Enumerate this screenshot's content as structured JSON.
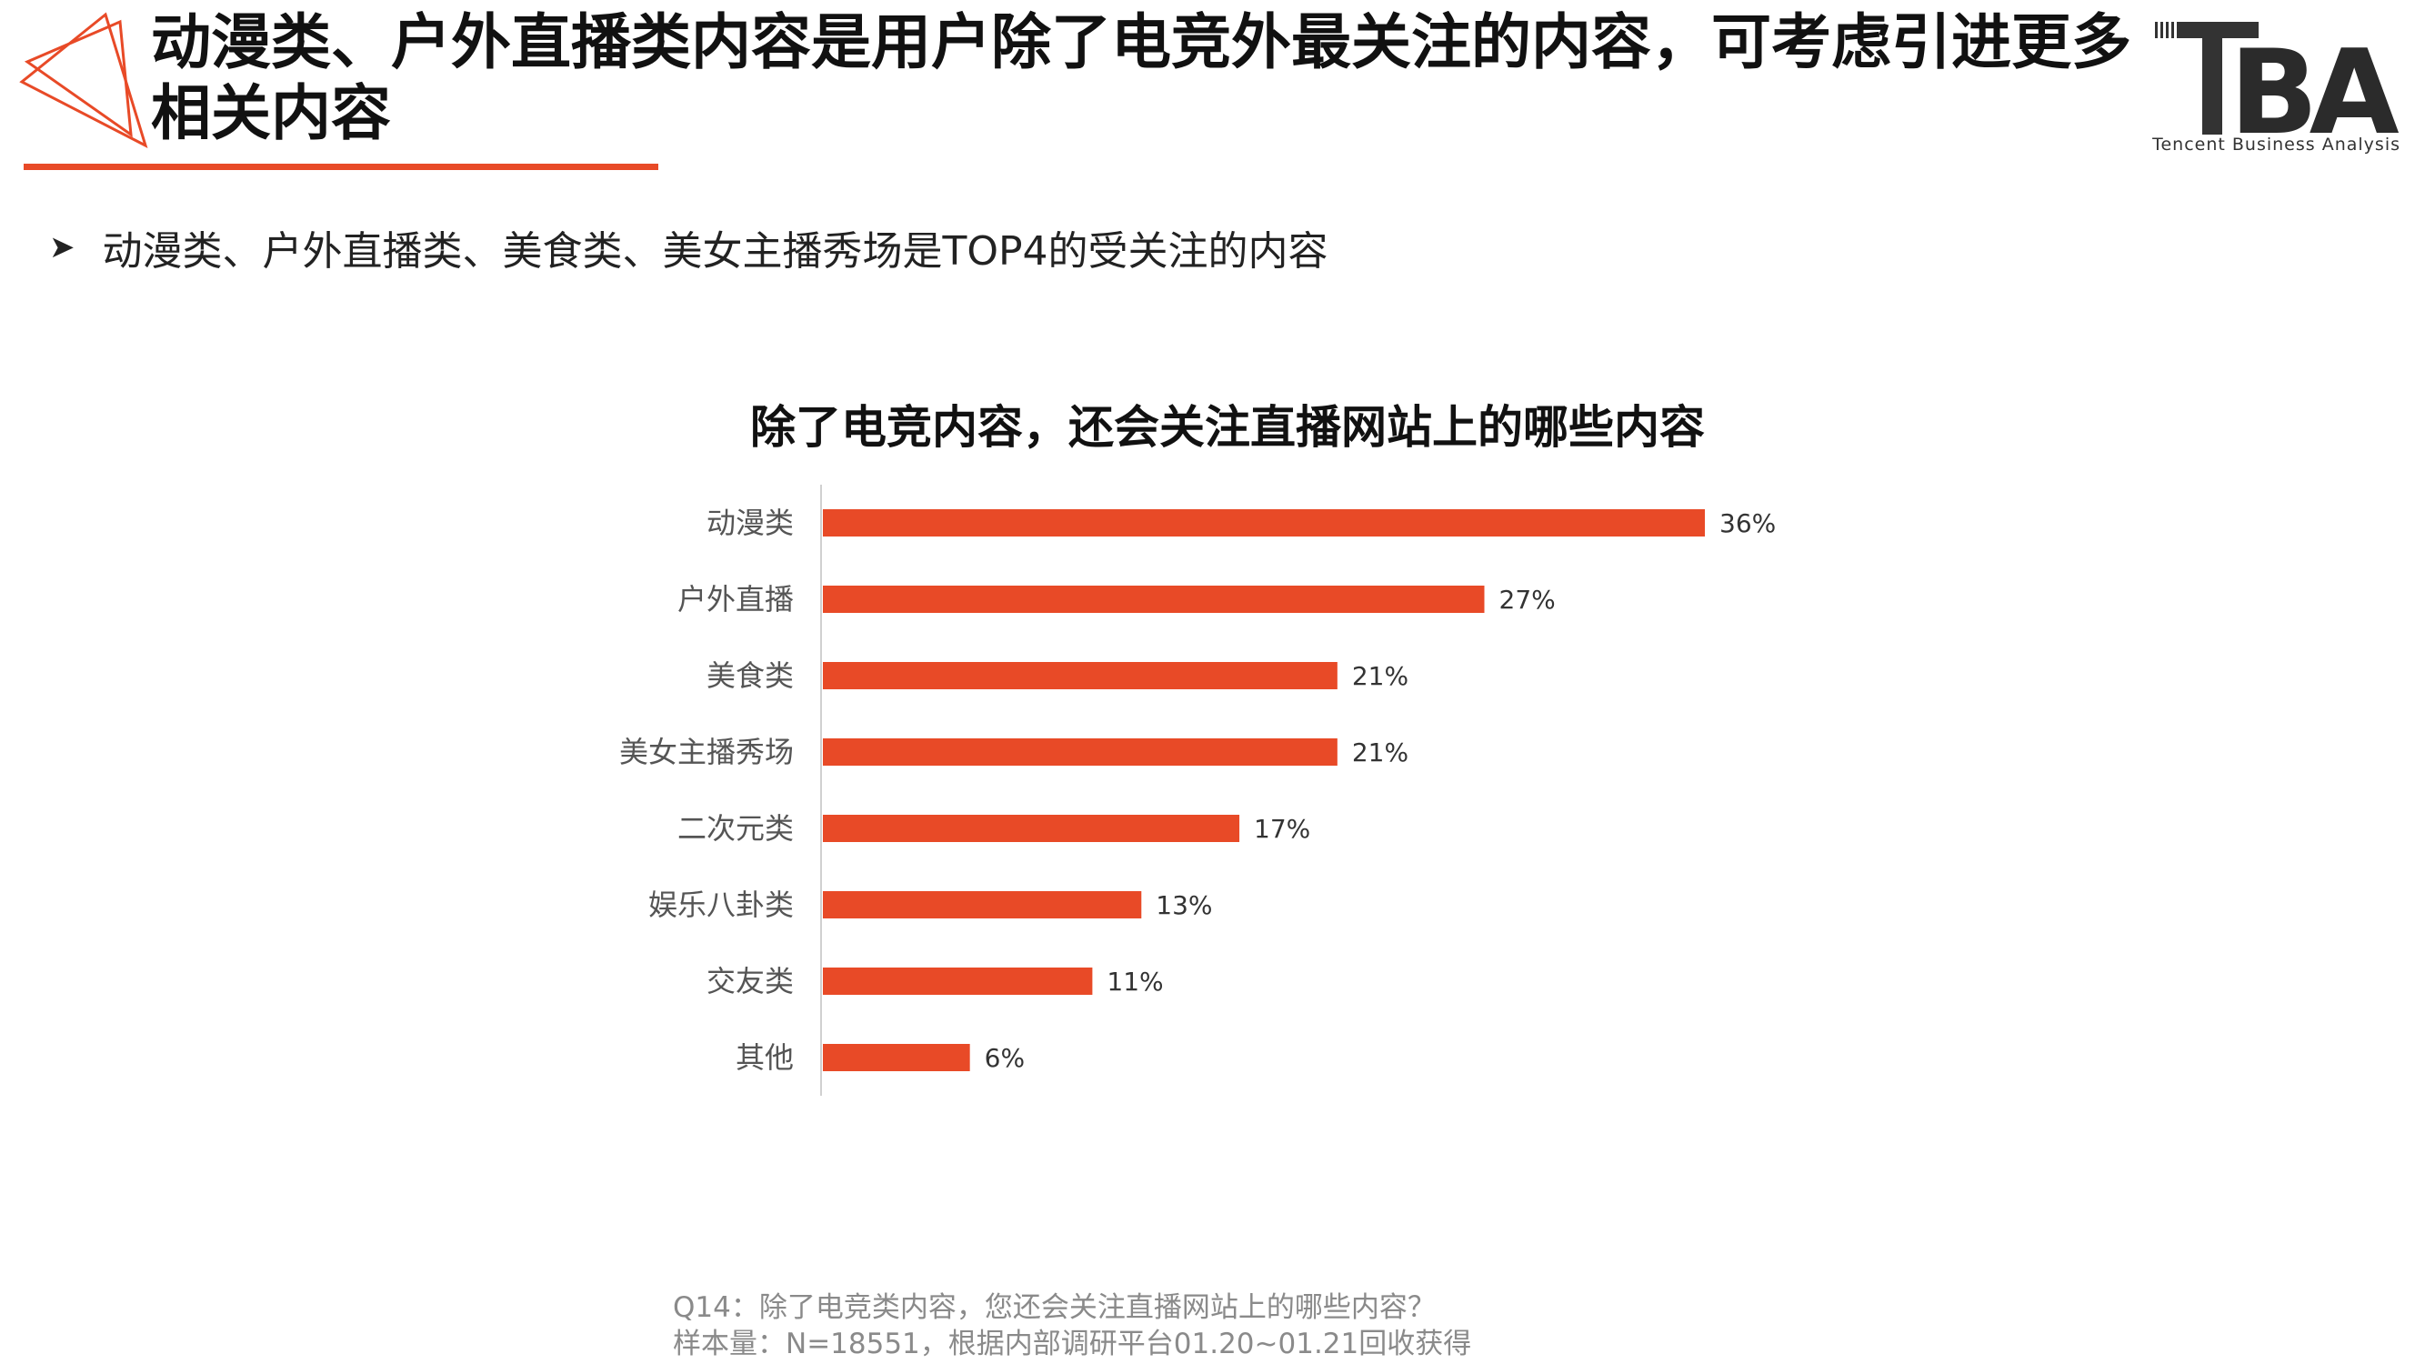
{
  "header": {
    "title": "动漫类、户外直播类内容是用户除了电竞外最关注的内容，可考虑引进更多相关内容",
    "logo_caption": "Tencent Business Analysis",
    "logo_letters": "BA"
  },
  "bullet": {
    "text": "动漫类、户外直播类、美食类、美女主播秀场是TOP4的受关注的内容"
  },
  "colors": {
    "accent": "#e84a27",
    "bar": "#e84a27"
  },
  "chart_data": {
    "type": "bar",
    "orientation": "horizontal",
    "title": "除了电竞内容，还会关注直播网站上的哪些内容",
    "categories": [
      "动漫类",
      "户外直播",
      "美食类",
      "美女主播秀场",
      "二次元类",
      "娱乐八卦类",
      "交友类",
      "其他"
    ],
    "values": [
      36,
      27,
      21,
      21,
      17,
      13,
      11,
      6
    ],
    "value_labels": [
      "36%",
      "27%",
      "21%",
      "21%",
      "17%",
      "13%",
      "11%",
      "6%"
    ],
    "unit": "%",
    "xlim": [
      0,
      36
    ],
    "grid": false,
    "legend": "none"
  },
  "footnote": {
    "question": "Q14：除了电竞类内容，您还会关注直播网站上的哪些内容？",
    "sample": "样本量：N=18551，根据内部调研平台01.20~01.21回收获得"
  }
}
